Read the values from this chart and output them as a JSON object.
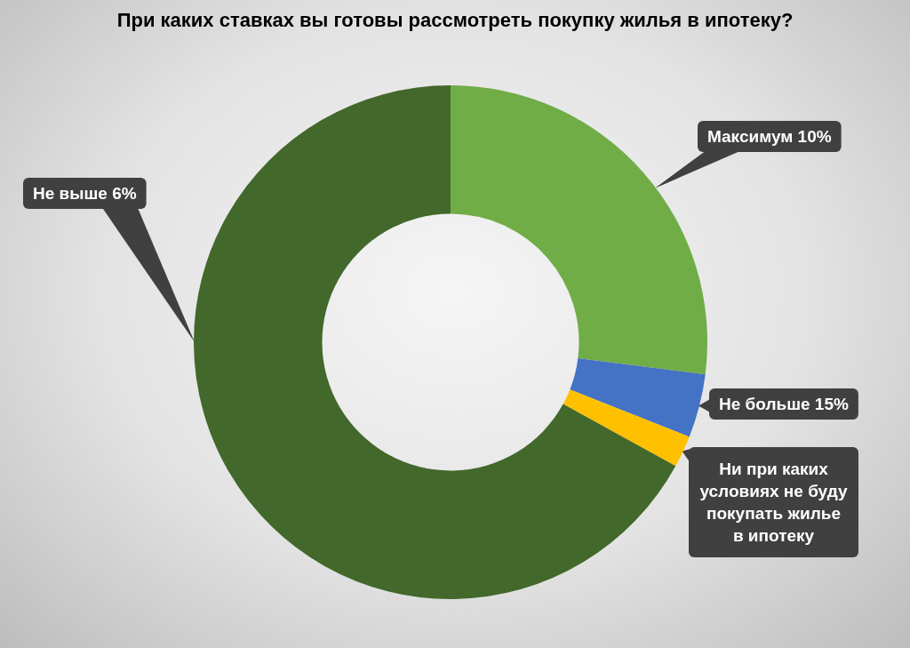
{
  "chart_data": {
    "type": "donut",
    "title": "При каких ставках вы готовы рассмотреть покупку жилья в ипотеку?",
    "categories": [
      "Максимум 10%",
      "Не больше 15%",
      "Ни при каких условиях не буду покупать жилье в ипотеку",
      "Не выше 6%"
    ],
    "values": [
      27,
      4,
      2,
      67
    ],
    "colors": [
      "#70ad47",
      "#4472c4",
      "#ffc000",
      "#43682b"
    ]
  }
}
